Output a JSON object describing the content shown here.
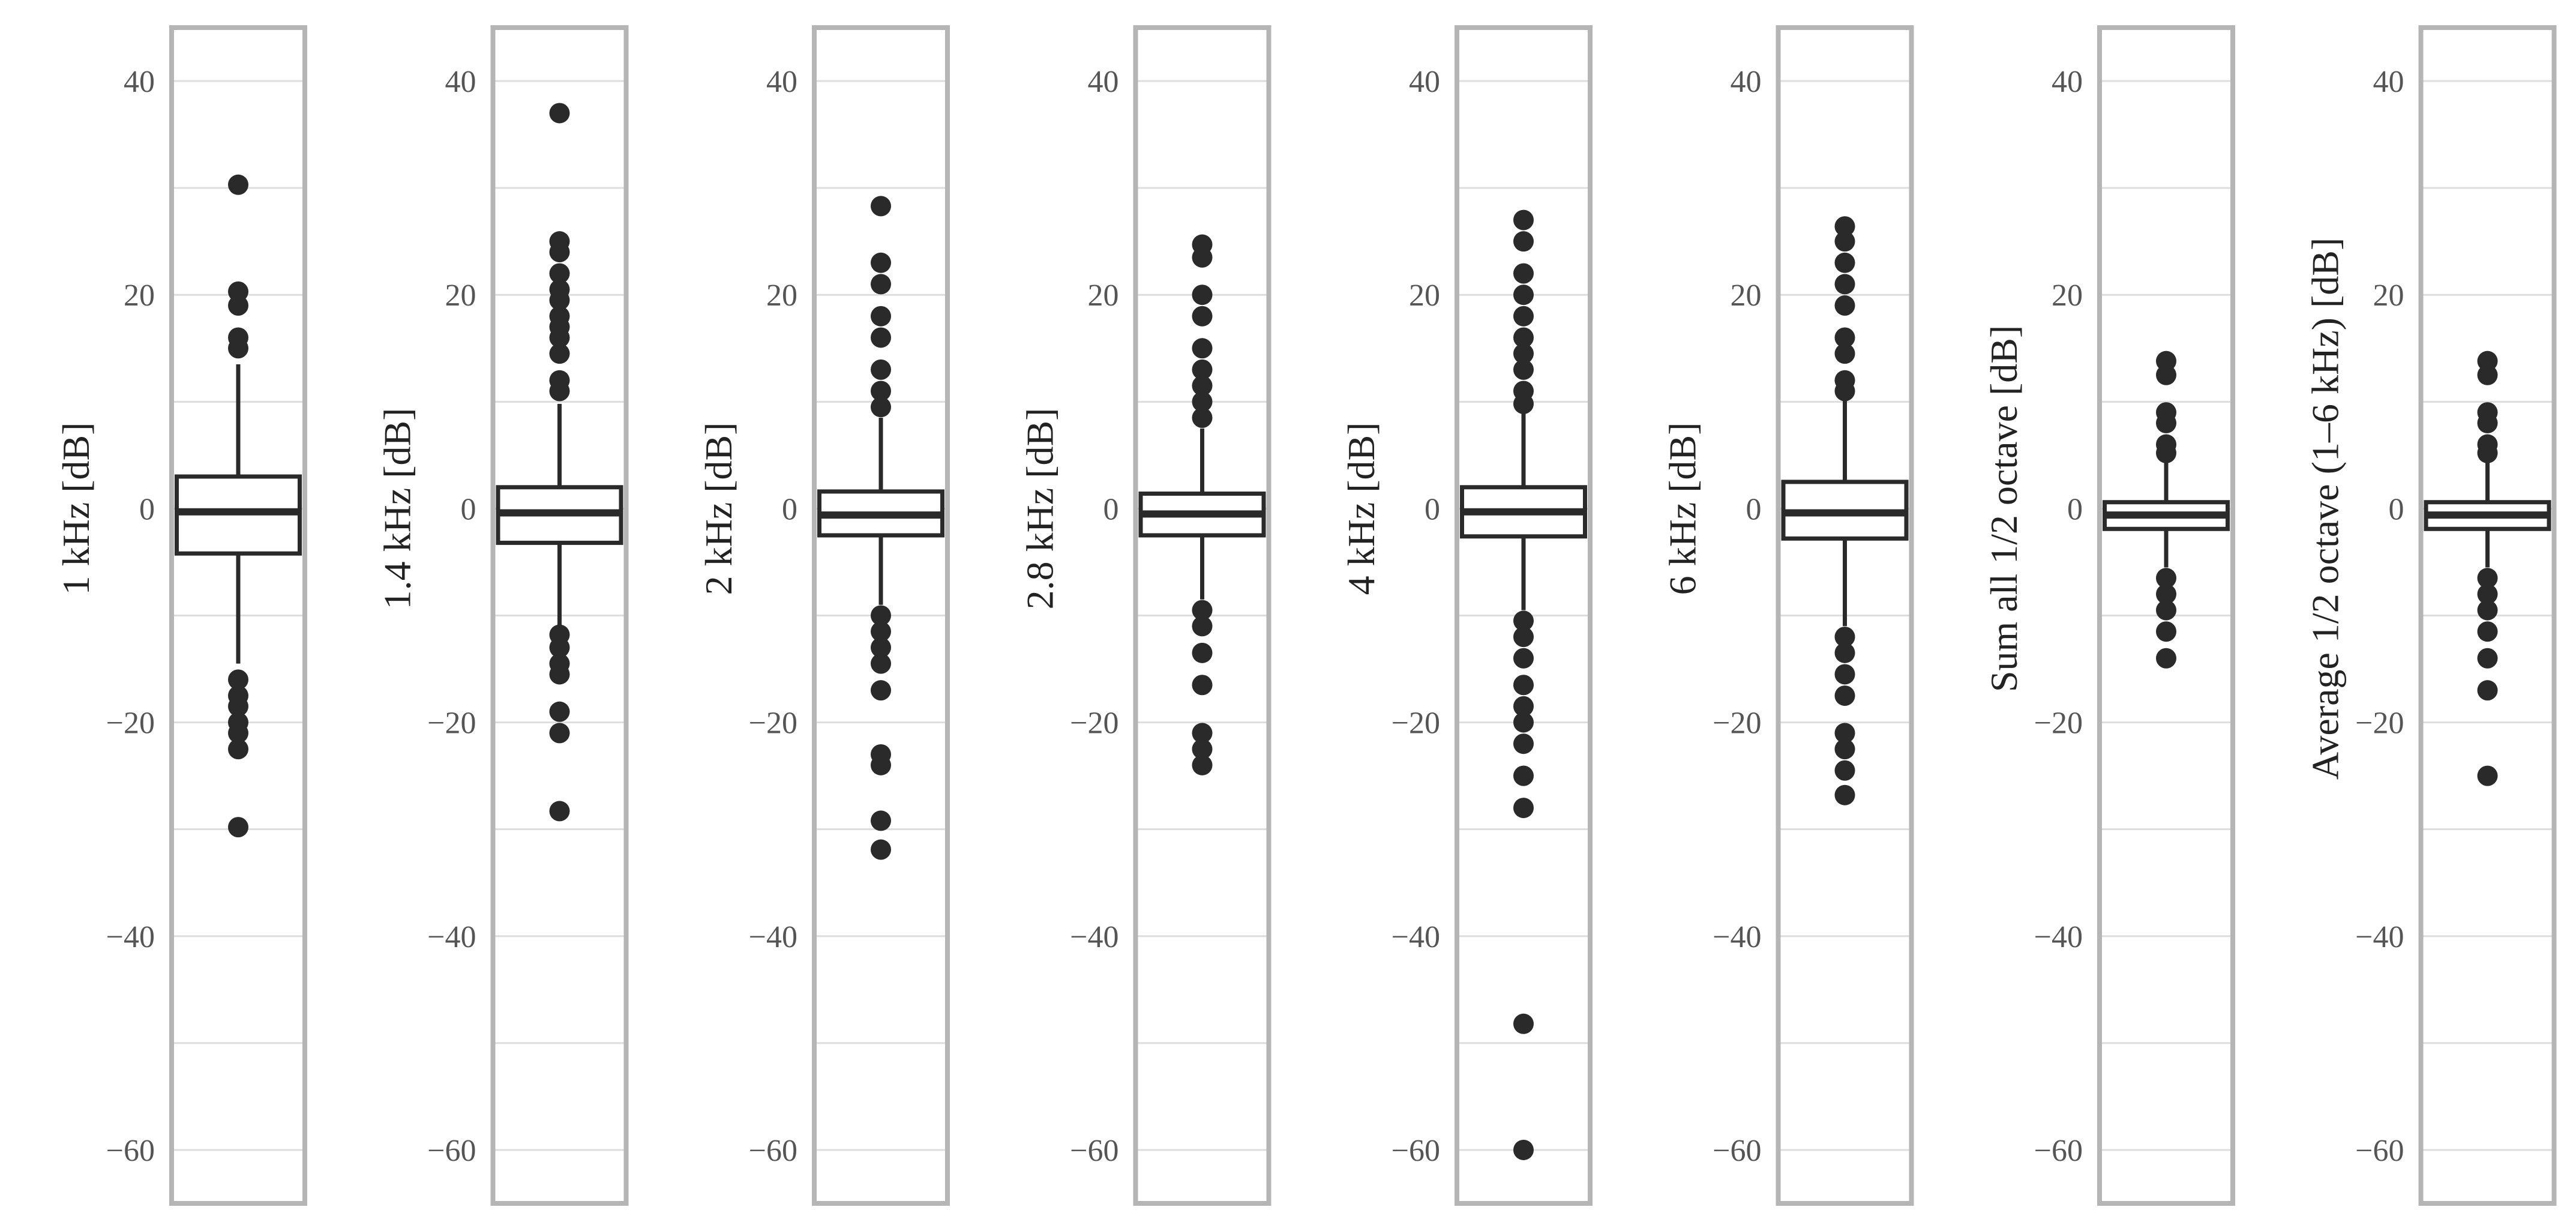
{
  "chart_data": {
    "type": "box",
    "ylim": [
      -65,
      45
    ],
    "yticks": [
      40,
      20,
      0,
      -20,
      -40,
      -60
    ],
    "ytick_labels": [
      "40",
      "20",
      "0",
      "−20",
      "−40",
      "−60"
    ],
    "grid": true,
    "panels": [
      {
        "ylabel": "1 kHz [dB]",
        "q1": -4.2,
        "median": -0.3,
        "q3": 3.0,
        "whisker_low": -14.5,
        "whisker_high": 13.5,
        "outliers": [
          30.3,
          20.3,
          19.0,
          16.0,
          15.0,
          -16.0,
          -17.5,
          -18.5,
          -20.0,
          -21.0,
          -22.5,
          -29.8
        ]
      },
      {
        "ylabel": "1.4 kHz [dB]",
        "q1": -3.2,
        "median": -0.4,
        "q3": 2.0,
        "whisker_low": -11.0,
        "whisker_high": 9.8,
        "outliers": [
          37.0,
          25.0,
          24.0,
          22.0,
          20.5,
          19.5,
          18.0,
          17.0,
          16.0,
          14.5,
          12.0,
          11.0,
          -11.8,
          -13.0,
          -14.5,
          -15.5,
          -19.0,
          -21.0,
          -28.3
        ]
      },
      {
        "ylabel": "2 kHz [dB]",
        "q1": -2.5,
        "median": -0.6,
        "q3": 1.6,
        "whisker_low": -9.0,
        "whisker_high": 8.5,
        "outliers": [
          28.3,
          23.0,
          21.0,
          18.0,
          16.0,
          13.0,
          11.0,
          9.5,
          -10.0,
          -11.5,
          -13.0,
          -14.5,
          -17.0,
          -23.0,
          -24.0,
          -29.2,
          -31.9
        ]
      },
      {
        "ylabel": "2.8 kHz [dB]",
        "q1": -2.5,
        "median": -0.5,
        "q3": 1.4,
        "whisker_low": -8.5,
        "whisker_high": 7.5,
        "outliers": [
          24.7,
          23.5,
          20.0,
          18.0,
          15.0,
          13.0,
          11.5,
          10.0,
          8.5,
          -9.5,
          -11.0,
          -13.5,
          -16.5,
          -21.0,
          -22.5,
          -24.0
        ]
      },
      {
        "ylabel": "4 kHz [dB]",
        "q1": -2.6,
        "median": -0.3,
        "q3": 2.0,
        "whisker_low": -9.5,
        "whisker_high": 9.0,
        "outliers": [
          27.0,
          25.0,
          22.0,
          20.0,
          18.0,
          16.0,
          14.5,
          13.0,
          11.0,
          9.8,
          -10.5,
          -12.0,
          -14.0,
          -16.5,
          -18.5,
          -20.0,
          -22.0,
          -25.0,
          -28.0,
          -48.2,
          -60.0
        ]
      },
      {
        "ylabel": "6 kHz [dB]",
        "q1": -2.8,
        "median": -0.4,
        "q3": 2.5,
        "whisker_low": -11.0,
        "whisker_high": 10.5,
        "outliers": [
          26.4,
          25.0,
          23.0,
          21.0,
          19.0,
          16.0,
          14.5,
          12.0,
          11.0,
          -12.0,
          -13.5,
          -15.5,
          -17.5,
          -21.0,
          -22.5,
          -24.5,
          -26.8
        ]
      },
      {
        "ylabel": "Sum all 1/2 octave [dB]",
        "q1": -1.9,
        "median": -0.6,
        "q3": 0.6,
        "whisker_low": -5.5,
        "whisker_high": 4.8,
        "outliers": [
          13.8,
          12.5,
          9.0,
          8.0,
          6.0,
          5.2,
          -6.5,
          -8.0,
          -9.5,
          -11.5,
          -14.0
        ]
      },
      {
        "ylabel": "Average 1/2 octave (1–6 kHz) [dB]",
        "q1": -1.9,
        "median": -0.6,
        "q3": 0.6,
        "whisker_low": -5.5,
        "whisker_high": 4.8,
        "outliers": [
          13.8,
          12.5,
          9.0,
          8.0,
          6.0,
          5.2,
          -6.5,
          -8.0,
          -9.5,
          -11.5,
          -14.0,
          -17.0,
          -25.0
        ]
      }
    ]
  }
}
